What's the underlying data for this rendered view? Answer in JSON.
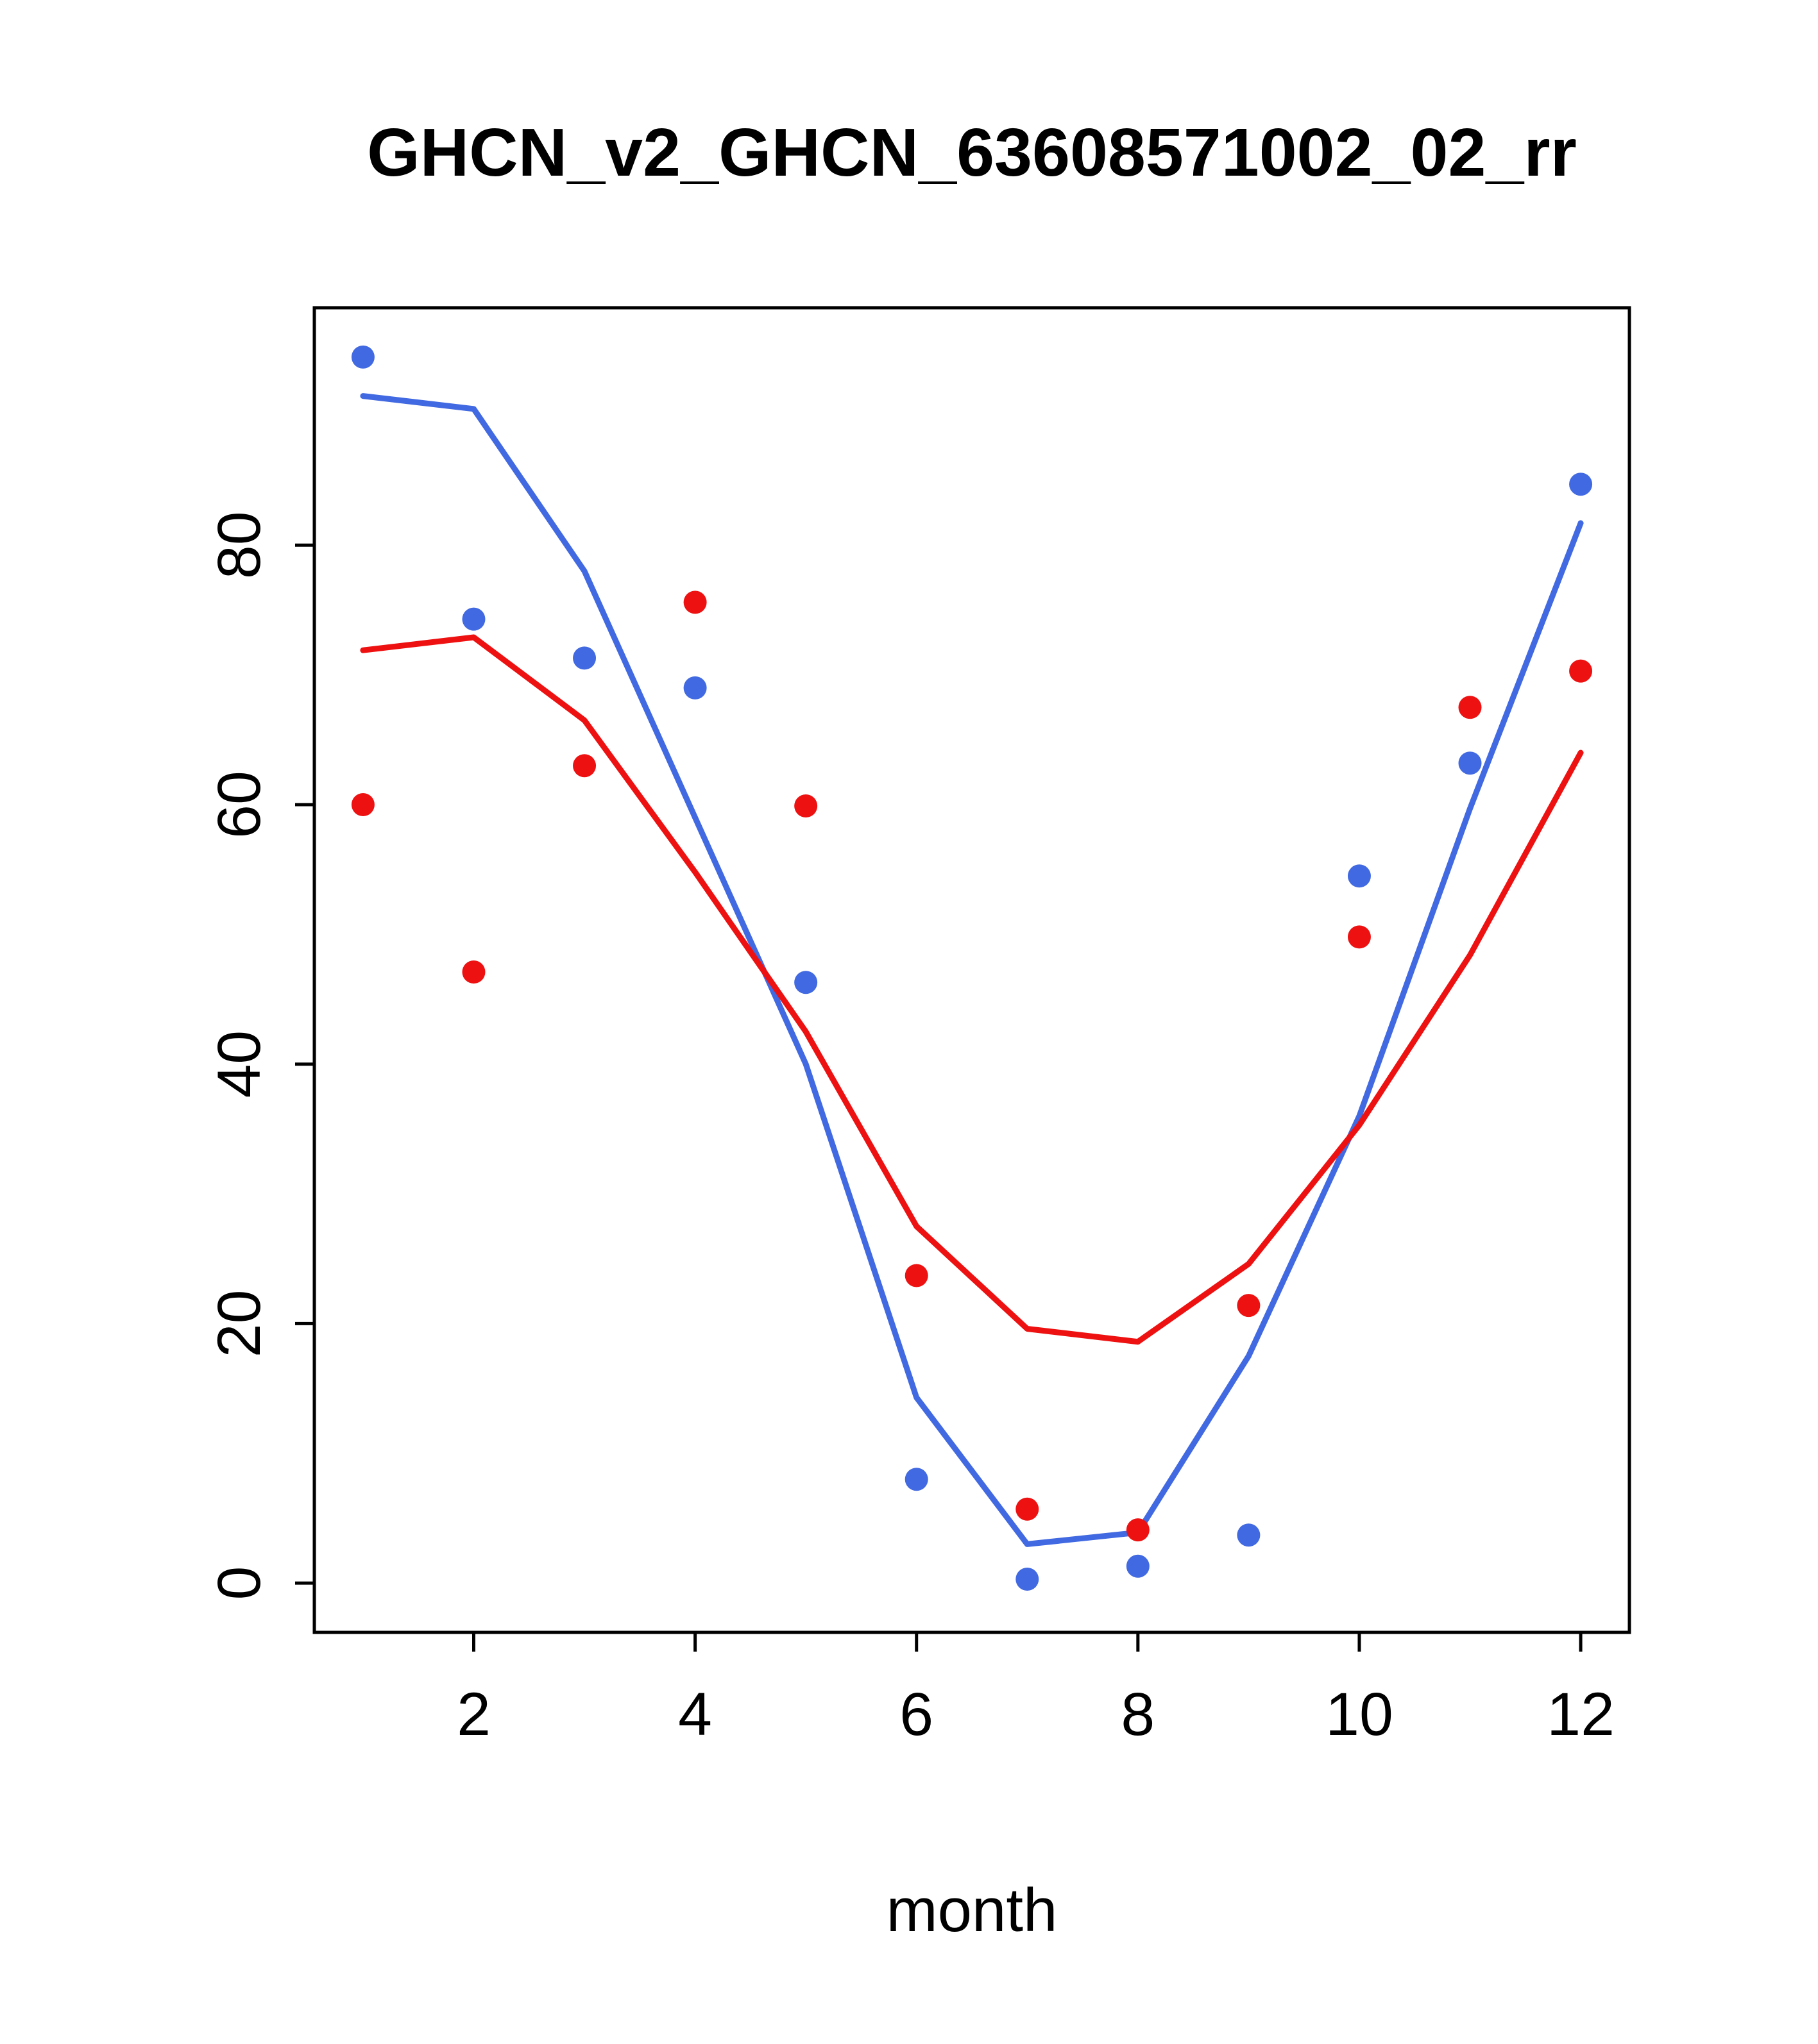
{
  "page": {
    "background": "#ffffff"
  },
  "chart_data": {
    "type": "line",
    "title": "GHCN_v2_GHCN_63608571002_02_rr",
    "xlabel": "month",
    "ylabel": "",
    "xlim": [
      0.56,
      12.44
    ],
    "ylim": [
      -3.8,
      98.3
    ],
    "xticks": [
      2,
      4,
      6,
      8,
      10,
      12
    ],
    "yticks": [
      0,
      20,
      40,
      60,
      80
    ],
    "x": [
      1,
      2,
      3,
      4,
      5,
      6,
      7,
      8,
      9,
      10,
      11,
      12
    ],
    "grid": false,
    "legend": "none",
    "colors": {
      "blue": "#4169e1",
      "red": "#ee1111",
      "axis": "#000000"
    },
    "series": [
      {
        "name": "blue-points",
        "style": "points",
        "color": "#4169e1",
        "values": [
          94.5,
          74.3,
          71.3,
          69.0,
          46.3,
          8.0,
          0.3,
          1.3,
          3.7,
          54.5,
          63.2,
          84.7
        ]
      },
      {
        "name": "blue-line",
        "style": "line",
        "color": "#4169e1",
        "values": [
          91.5,
          90.5,
          78.0,
          59.0,
          40.0,
          14.3,
          3.0,
          3.9,
          17.5,
          36.0,
          59.7,
          81.7
        ]
      },
      {
        "name": "red-points",
        "style": "points",
        "color": "#ee1111",
        "values": [
          60.0,
          47.1,
          63.0,
          75.6,
          59.9,
          23.7,
          5.7,
          4.1,
          21.4,
          49.8,
          67.5,
          70.3
        ]
      },
      {
        "name": "red-line",
        "style": "line",
        "color": "#ee1111",
        "values": [
          71.9,
          72.9,
          66.5,
          54.8,
          42.5,
          27.5,
          19.6,
          18.6,
          24.6,
          35.3,
          48.4,
          64.0
        ]
      }
    ]
  }
}
